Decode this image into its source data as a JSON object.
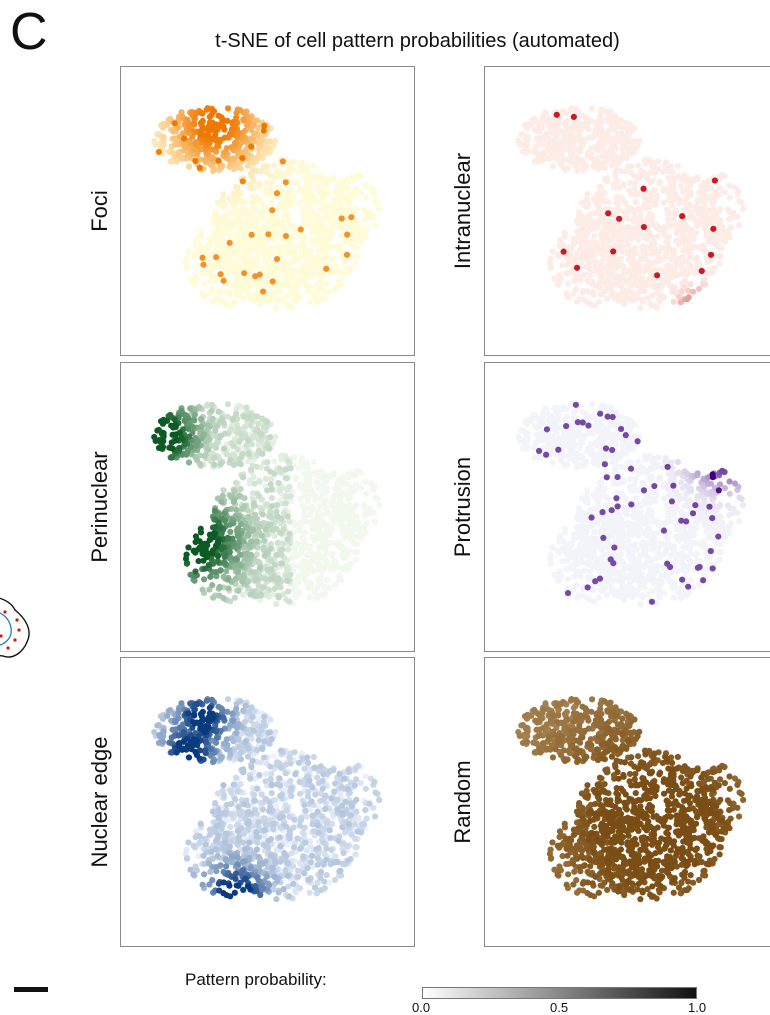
{
  "panel_label": "C",
  "title": "t-SNE of cell pattern probabilities (automated)",
  "legend": {
    "label": "Pattern probability:",
    "ticks": [
      "0.0",
      "0.5",
      "1.0"
    ],
    "range": [
      0.0,
      1.0
    ]
  },
  "chart_data": {
    "type": "scatter",
    "title": "t-SNE of cell pattern probabilities (automated)",
    "xlabel": "",
    "ylabel": "",
    "grid": false,
    "legend_position": "bottom",
    "colorbar_ticks": [
      0.0,
      0.5,
      1.0
    ],
    "panels": [
      {
        "name": "Foci",
        "low_color": "#fffbd7",
        "high_color": "#f07800"
      },
      {
        "name": "Intranuclear",
        "low_color": "#fdece6",
        "high_color": "#c8000f"
      },
      {
        "name": "Perinuclear",
        "low_color": "#f1f8ee",
        "high_color": "#0b5a23"
      },
      {
        "name": "Protrusion",
        "low_color": "#f3f3fa",
        "high_color": "#400080"
      },
      {
        "name": "Nuclear edge",
        "low_color": "#eef4fc",
        "high_color": "#083a80"
      },
      {
        "name": "Random",
        "low_color": "#fff0d0",
        "high_color": "#7a4d14"
      }
    ]
  }
}
